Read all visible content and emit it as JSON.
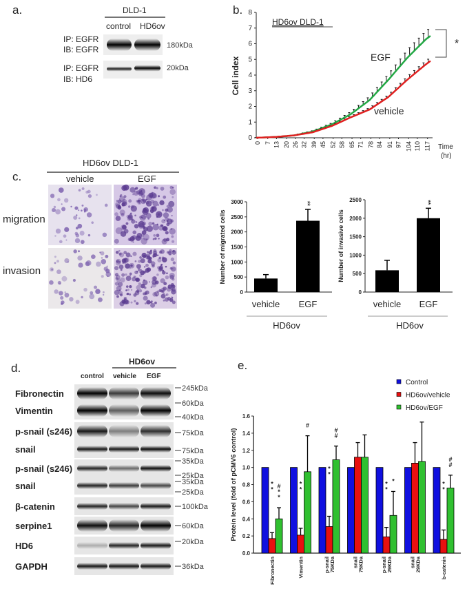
{
  "panel_a": {
    "label": "a.",
    "cell_line": "DLD-1",
    "lanes": [
      "control",
      "HD6ov"
    ],
    "rows": [
      {
        "ip": "IP: EGFR",
        "ib": "IB: EGFR",
        "marker": "180kDa"
      },
      {
        "ip": "IP: EGFR",
        "ib": "IB: HD6",
        "marker": "20kDa"
      }
    ]
  },
  "panel_b": {
    "label": "b."
  },
  "panel_c": {
    "label": "c.",
    "title": "HD6ov DLD-1",
    "columns": [
      "vehicle",
      "EGF"
    ],
    "rows": [
      "migration",
      "invasion"
    ],
    "group_label": "HD6ov"
  },
  "panel_d": {
    "label": "d.",
    "group": "HD6ov",
    "lanes": [
      "control",
      "vehicle",
      "EGF"
    ],
    "rows": [
      "Fibronectin",
      "Vimentin",
      "p-snail (s246)",
      "snail",
      "p-snail (s246)",
      "snail",
      "β-catenin",
      "serpine1",
      "HD6",
      "GAPDH"
    ],
    "markers": [
      "245kDa",
      "60kDa",
      "40kDa",
      "75kDa",
      "75kDa",
      "35kDa",
      "25kDa",
      "35kDa",
      "25kDa",
      "100kDa",
      "60kDa",
      "20kDa",
      "36kDa"
    ]
  },
  "panel_e": {
    "label": "e."
  },
  "chart_data": [
    {
      "type": "line",
      "title": "HD6ov DLD-1",
      "xlabel": "Time (hr)",
      "xlabel_lines": [
        "Time",
        "(hr)"
      ],
      "ylabel": "Cell index",
      "ylim": [
        0,
        8
      ],
      "xlim": [
        0,
        120
      ],
      "yticks": [
        "0",
        "1",
        "2",
        "3",
        "4",
        "5",
        "6",
        "7",
        "8"
      ],
      "xticks": [
        "0",
        "7",
        "13",
        "20",
        "26",
        "32",
        "39",
        "45",
        "52",
        "58",
        "65",
        "71",
        "78",
        "84",
        "91",
        "97",
        "104",
        "110",
        "117"
      ],
      "x": [
        0,
        13,
        26,
        39,
        52,
        65,
        78,
        91,
        104,
        117,
        120
      ],
      "series": [
        {
          "name": "EGF",
          "color": "#22a844",
          "values": [
            0,
            0.05,
            0.15,
            0.4,
            0.85,
            1.5,
            2.4,
            3.7,
            5.1,
            6.3,
            6.5
          ],
          "error": 0.5
        },
        {
          "name": "vehicle",
          "color": "#e02020",
          "values": [
            0,
            0.05,
            0.15,
            0.35,
            0.75,
            1.3,
            1.8,
            2.6,
            3.7,
            4.7,
            4.9
          ],
          "error": 0.2
        }
      ],
      "annotation": "*"
    },
    {
      "type": "bar",
      "ylabel": "Number of migrated cells",
      "categories": [
        "vehicle",
        "EGF"
      ],
      "values": [
        450,
        2370
      ],
      "errors": [
        130,
        380
      ],
      "ylim": [
        0,
        3000
      ],
      "yticks": [
        "0",
        "500",
        "1000",
        "1500",
        "2000",
        "2500",
        "3000"
      ],
      "significance": [
        "",
        "**"
      ],
      "group_label": "HD6ov"
    },
    {
      "type": "bar",
      "ylabel": "Number of invasive cells",
      "categories": [
        "vehicle",
        "EGF"
      ],
      "values": [
        590,
        2000
      ],
      "errors": [
        270,
        270
      ],
      "ylim": [
        0,
        2500
      ],
      "yticks": [
        "0",
        "500",
        "1000",
        "1500",
        "2000",
        "2500"
      ],
      "significance": [
        "",
        "**"
      ],
      "group_label": "HD6ov"
    },
    {
      "type": "bar",
      "ylabel": "Protein level (fold of pCMV6 control)",
      "ylim": [
        0,
        1.6
      ],
      "yticks": [
        "0.0",
        "0.2",
        "0.4",
        "0.6",
        "0.8",
        "1.0",
        "1.2",
        "1.4",
        "1.6"
      ],
      "categories": [
        [
          "Fibronectin"
        ],
        [
          "Vimentin"
        ],
        [
          "p-snail",
          "75KDa"
        ],
        [
          "snail",
          "75KDa"
        ],
        [
          "p-snail",
          "29KDa"
        ],
        [
          "snail",
          "29KDa"
        ],
        [
          "b-catenin"
        ]
      ],
      "series": [
        {
          "name": "Control",
          "color": "#1010e0",
          "values": [
            1,
            1,
            1,
            1,
            1,
            1,
            1
          ],
          "errors": [
            0,
            0,
            0,
            0,
            0,
            0,
            0
          ],
          "marks": [
            [],
            [],
            [],
            [],
            [],
            [],
            []
          ]
        },
        {
          "name": "HD6ov/vehicle",
          "color": "#e81010",
          "values": [
            0.17,
            0.21,
            0.31,
            1.12,
            0.19,
            1.05,
            0.16
          ],
          "errors": [
            0.07,
            0.08,
            0.12,
            0.17,
            0.11,
            0.24,
            0.11
          ],
          "marks": [
            [
              "*",
              "*"
            ],
            [
              "*",
              "*"
            ],
            [
              "*",
              "*"
            ],
            [],
            [
              "*",
              "*"
            ],
            [],
            [
              "*",
              "*"
            ]
          ]
        },
        {
          "name": "HD6ov/EGF",
          "color": "#30c030",
          "values": [
            0.4,
            0.95,
            1.09,
            1.12,
            0.44,
            1.07,
            0.76
          ],
          "errors": [
            0.13,
            0.42,
            0.16,
            0.26,
            0.28,
            0.46,
            0.15
          ],
          "marks": [
            [
              "#",
              "*",
              "*"
            ],
            [
              "#"
            ],
            [
              "#",
              "#"
            ],
            [],
            [
              "*"
            ],
            [],
            [
              "#",
              "#"
            ]
          ]
        }
      ],
      "legend": "top-right"
    }
  ]
}
